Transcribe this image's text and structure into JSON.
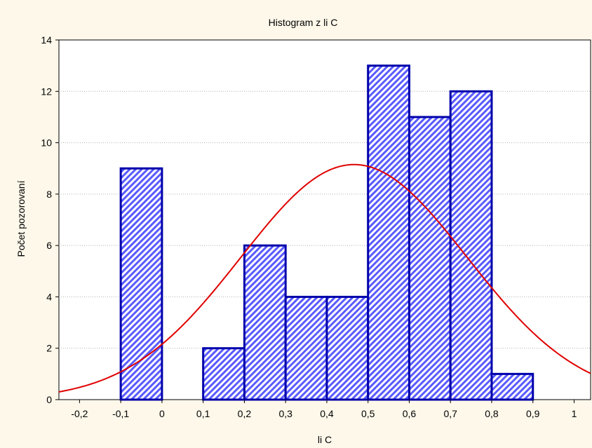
{
  "chart_data": {
    "type": "bar",
    "title": "Histogram z li C",
    "xlabel": "li C",
    "ylabel": "Počet pozorovaní",
    "xlim": [
      -0.25,
      1.04
    ],
    "ylim": [
      0,
      14
    ],
    "x_ticks": [
      {
        "value": -0.2,
        "label": "-0,2"
      },
      {
        "value": -0.1,
        "label": "-0,1"
      },
      {
        "value": 0,
        "label": "0"
      },
      {
        "value": 0.1,
        "label": "0,1"
      },
      {
        "value": 0.2,
        "label": "0,2"
      },
      {
        "value": 0.3,
        "label": "0,3"
      },
      {
        "value": 0.4,
        "label": "0,4"
      },
      {
        "value": 0.5,
        "label": "0,5"
      },
      {
        "value": 0.6,
        "label": "0,6"
      },
      {
        "value": 0.7,
        "label": "0,7"
      },
      {
        "value": 0.8,
        "label": "0,8"
      },
      {
        "value": 0.9,
        "label": "0,9"
      },
      {
        "value": 1.0,
        "label": "1"
      }
    ],
    "y_ticks": [
      {
        "value": 0,
        "label": "0"
      },
      {
        "value": 2,
        "label": "2"
      },
      {
        "value": 4,
        "label": "4"
      },
      {
        "value": 6,
        "label": "6"
      },
      {
        "value": 8,
        "label": "8"
      },
      {
        "value": 10,
        "label": "10"
      },
      {
        "value": 12,
        "label": "12"
      },
      {
        "value": 14,
        "label": "14"
      }
    ],
    "bins": [
      {
        "from": -0.1,
        "to": 0.0,
        "count": 9
      },
      {
        "from": 0.1,
        "to": 0.2,
        "count": 2
      },
      {
        "from": 0.2,
        "to": 0.3,
        "count": 6
      },
      {
        "from": 0.3,
        "to": 0.4,
        "count": 4
      },
      {
        "from": 0.4,
        "to": 0.5,
        "count": 4
      },
      {
        "from": 0.5,
        "to": 0.6,
        "count": 13
      },
      {
        "from": 0.6,
        "to": 0.7,
        "count": 11
      },
      {
        "from": 0.7,
        "to": 0.8,
        "count": 12
      },
      {
        "from": 0.8,
        "to": 0.9,
        "count": 1
      }
    ],
    "normal_curve": {
      "mean": 0.466,
      "sd": 0.274,
      "peak": 9.15
    },
    "grid": true,
    "colors": {
      "bar_edge": "#0000aa",
      "bar_hatch_light": "#ffffff",
      "bar_hatch_dark": "#5a5aff",
      "curve": "#e00000",
      "plot_background": "#ffffff",
      "page_background": "#fdf8ea",
      "grid": "#b0b0b0"
    }
  }
}
